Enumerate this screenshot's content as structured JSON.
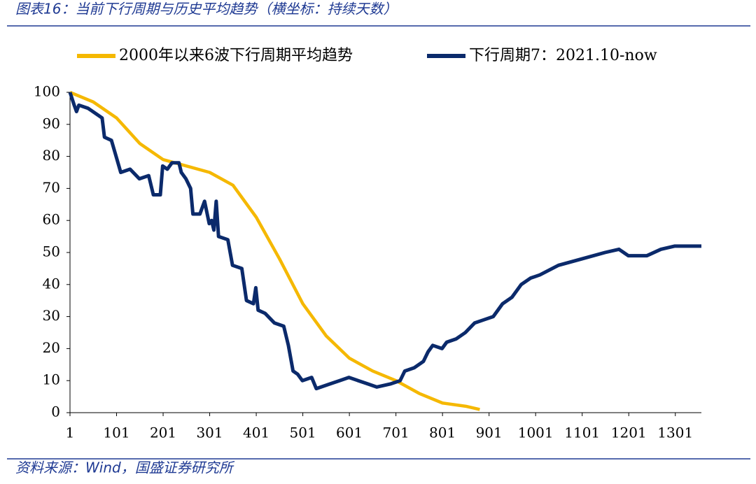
{
  "title": "图表16：当前下行周期与历史平均趋势（横坐标：持续天数）",
  "source": "资料来源：Wind，国盛证券研究所",
  "chart_data": {
    "type": "line",
    "xlim": [
      1,
      1357
    ],
    "xticks": [
      1,
      101,
      201,
      301,
      401,
      501,
      601,
      701,
      801,
      901,
      1001,
      1101,
      1201,
      1301
    ],
    "ylim": [
      0,
      100
    ],
    "yticks": [
      0,
      10,
      20,
      30,
      40,
      50,
      60,
      70,
      80,
      90,
      100
    ],
    "series": [
      {
        "name": "2000年以来6波下行周期平均趋势",
        "color": "#f5b800",
        "x": [
          1,
          51,
          101,
          151,
          201,
          251,
          301,
          351,
          401,
          451,
          501,
          551,
          601,
          651,
          701,
          751,
          801,
          851,
          881
        ],
        "values": [
          100,
          97,
          92,
          84,
          79,
          77,
          75,
          71,
          61,
          48,
          34,
          24,
          17,
          13,
          10,
          6,
          3,
          2,
          1
        ]
      },
      {
        "name": "下行周期7：2021.10-now",
        "color": "#0b2a6b",
        "x": [
          1,
          10,
          15,
          20,
          40,
          60,
          70,
          75,
          90,
          100,
          110,
          130,
          150,
          170,
          180,
          195,
          200,
          210,
          220,
          235,
          240,
          250,
          260,
          265,
          280,
          290,
          300,
          305,
          310,
          315,
          320,
          340,
          350,
          370,
          380,
          395,
          400,
          405,
          420,
          440,
          460,
          470,
          480,
          490,
          500,
          520,
          530,
          560,
          580,
          600,
          620,
          640,
          660,
          690,
          710,
          720,
          740,
          760,
          770,
          780,
          800,
          810,
          830,
          850,
          870,
          890,
          910,
          930,
          950,
          970,
          990,
          1010,
          1050,
          1100,
          1150,
          1180,
          1200,
          1240,
          1270,
          1300,
          1330,
          1357
        ],
        "values": [
          100,
          96,
          94,
          96,
          95,
          93,
          92,
          86,
          85,
          80,
          75,
          76,
          73,
          74,
          68,
          68,
          77,
          76,
          78,
          78,
          75,
          73,
          70,
          62,
          62,
          66,
          59,
          60,
          57,
          66,
          55,
          54,
          46,
          45,
          35,
          34,
          39,
          32,
          31,
          28,
          27,
          21,
          13,
          12,
          10,
          11,
          7.5,
          9,
          10,
          11,
          10,
          9,
          8,
          9,
          10,
          13,
          14,
          16,
          19,
          21,
          20,
          22,
          23,
          25,
          28,
          29,
          30,
          34,
          36,
          40,
          42,
          43,
          46,
          48,
          50,
          51,
          49,
          49,
          51,
          52,
          52,
          52
        ]
      }
    ]
  }
}
